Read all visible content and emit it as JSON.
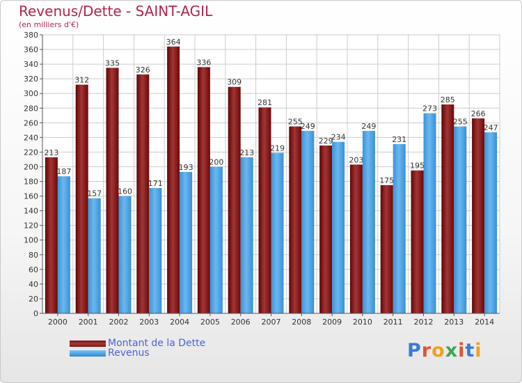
{
  "title": "Revenus/Dette - SAINT-AGIL",
  "subtitle": "(en milliers d'€)",
  "logo_text": "Proxiti",
  "colors": {
    "dette": "#7a0e0e",
    "revenus": "#4aa3e6",
    "grid": "#cccccc",
    "axis": "#555555",
    "title": "#b0254a",
    "legend_text": "#4a63d8"
  },
  "legend": [
    {
      "label": "Montant de la Dette",
      "color": "#7a0e0e"
    },
    {
      "label": "Revenus",
      "color": "#4aa3e6"
    }
  ],
  "chart_data": {
    "type": "bar",
    "title": "Revenus/Dette - SAINT-AGIL",
    "subtitle": "(en milliers d'€)",
    "categories": [
      "2000",
      "2001",
      "2002",
      "2003",
      "2004",
      "2005",
      "2006",
      "2007",
      "2008",
      "2009",
      "2010",
      "2011",
      "2012",
      "2013",
      "2014"
    ],
    "series": [
      {
        "name": "Montant de la Dette",
        "values": [
          213,
          312,
          335,
          326,
          364,
          336,
          309,
          281,
          255,
          229,
          203,
          175,
          195,
          285,
          266
        ]
      },
      {
        "name": "Revenus",
        "values": [
          187,
          157,
          160,
          171,
          193,
          200,
          213,
          219,
          249,
          234,
          249,
          231,
          273,
          255,
          247
        ]
      }
    ],
    "ylim": [
      0,
      380
    ],
    "yticks": [
      0,
      20,
      40,
      60,
      80,
      100,
      120,
      140,
      160,
      180,
      200,
      220,
      240,
      260,
      280,
      300,
      320,
      340,
      360,
      380
    ],
    "grid": true,
    "legend_position": "bottom-left"
  }
}
